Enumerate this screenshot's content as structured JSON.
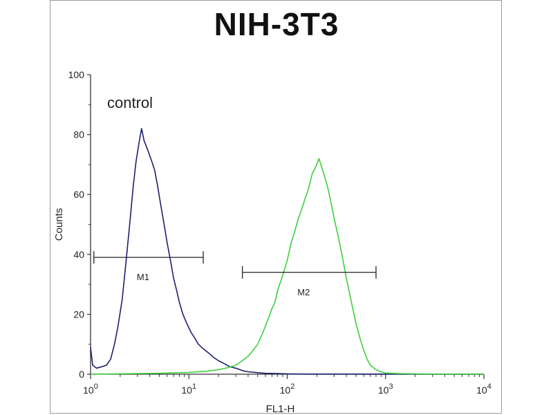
{
  "chart_data": {
    "type": "line",
    "title": "NIH-3T3",
    "xlabel": "FL1-H",
    "ylabel": "Counts",
    "x_scale": "log",
    "xlim": [
      1,
      10000
    ],
    "ylim": [
      0,
      100
    ],
    "x_ticks": [
      {
        "base": "10",
        "exp": "0",
        "value": 1
      },
      {
        "base": "10",
        "exp": "1",
        "value": 10
      },
      {
        "base": "10",
        "exp": "2",
        "value": 100
      },
      {
        "base": "10",
        "exp": "3",
        "value": 1000
      },
      {
        "base": "10",
        "exp": "4",
        "value": 10000
      }
    ],
    "y_ticks": [
      "0",
      "20",
      "40",
      "60",
      "80",
      "100"
    ],
    "annotation": "control",
    "colors": {
      "control": "#1c1f6e",
      "sample": "#3ccf3c"
    },
    "series": [
      {
        "color_key": "control",
        "points": [
          [
            1.0,
            9
          ],
          [
            1.05,
            3
          ],
          [
            1.15,
            2
          ],
          [
            1.3,
            2.5
          ],
          [
            1.45,
            3
          ],
          [
            1.6,
            5
          ],
          [
            1.75,
            10
          ],
          [
            1.9,
            16
          ],
          [
            2.1,
            25
          ],
          [
            2.3,
            38
          ],
          [
            2.5,
            50
          ],
          [
            2.7,
            62
          ],
          [
            2.9,
            71
          ],
          [
            3.1,
            77
          ],
          [
            3.3,
            82
          ],
          [
            3.5,
            78
          ],
          [
            3.7,
            76
          ],
          [
            3.9,
            74
          ],
          [
            4.2,
            71
          ],
          [
            4.5,
            68
          ],
          [
            4.8,
            63
          ],
          [
            5.2,
            56
          ],
          [
            5.6,
            50
          ],
          [
            6.0,
            44
          ],
          [
            6.5,
            38
          ],
          [
            7.0,
            32
          ],
          [
            7.5,
            28
          ],
          [
            8.0,
            24
          ],
          [
            8.7,
            20
          ],
          [
            9.5,
            17
          ],
          [
            10.5,
            14
          ],
          [
            11.5,
            12
          ],
          [
            12.5,
            10
          ],
          [
            14,
            8.5
          ],
          [
            16,
            7
          ],
          [
            18,
            5.5
          ],
          [
            20,
            4.5
          ],
          [
            23,
            3.5
          ],
          [
            26,
            2.5
          ],
          [
            30,
            2
          ],
          [
            35,
            1.2
          ],
          [
            40,
            0.8
          ],
          [
            50,
            0.5
          ],
          [
            60,
            0.3
          ],
          [
            80,
            0.2
          ],
          [
            100,
            0.1
          ],
          [
            150,
            0.05
          ],
          [
            10000,
            0
          ]
        ]
      },
      {
        "color_key": "sample",
        "points": [
          [
            1.0,
            0
          ],
          [
            5,
            0.3
          ],
          [
            10,
            0.6
          ],
          [
            15,
            1
          ],
          [
            20,
            1.5
          ],
          [
            25,
            2.2
          ],
          [
            30,
            3
          ],
          [
            35,
            4.5
          ],
          [
            40,
            6
          ],
          [
            45,
            8
          ],
          [
            50,
            10
          ],
          [
            55,
            13
          ],
          [
            60,
            16
          ],
          [
            65,
            19
          ],
          [
            70,
            22
          ],
          [
            75,
            24
          ],
          [
            80,
            28
          ],
          [
            90,
            33
          ],
          [
            100,
            38
          ],
          [
            110,
            44
          ],
          [
            120,
            48
          ],
          [
            130,
            52
          ],
          [
            140,
            55
          ],
          [
            150,
            58
          ],
          [
            165,
            62
          ],
          [
            180,
            67
          ],
          [
            200,
            70
          ],
          [
            210,
            72
          ],
          [
            220,
            70
          ],
          [
            240,
            66
          ],
          [
            260,
            62
          ],
          [
            280,
            57
          ],
          [
            300,
            52
          ],
          [
            330,
            46
          ],
          [
            360,
            40
          ],
          [
            400,
            32
          ],
          [
            450,
            24
          ],
          [
            500,
            17
          ],
          [
            550,
            12
          ],
          [
            600,
            8
          ],
          [
            650,
            5
          ],
          [
            700,
            3
          ],
          [
            800,
            1.5
          ],
          [
            900,
            0.8
          ],
          [
            1000,
            0.4
          ],
          [
            1300,
            0.2
          ],
          [
            2000,
            0.1
          ],
          [
            10000,
            0
          ]
        ]
      }
    ],
    "markers": [
      {
        "label": "M1",
        "x_start": 1.08,
        "x_end": 14,
        "y": 39
      },
      {
        "label": "M2",
        "x_start": 35,
        "x_end": 800,
        "y": 34
      }
    ]
  }
}
